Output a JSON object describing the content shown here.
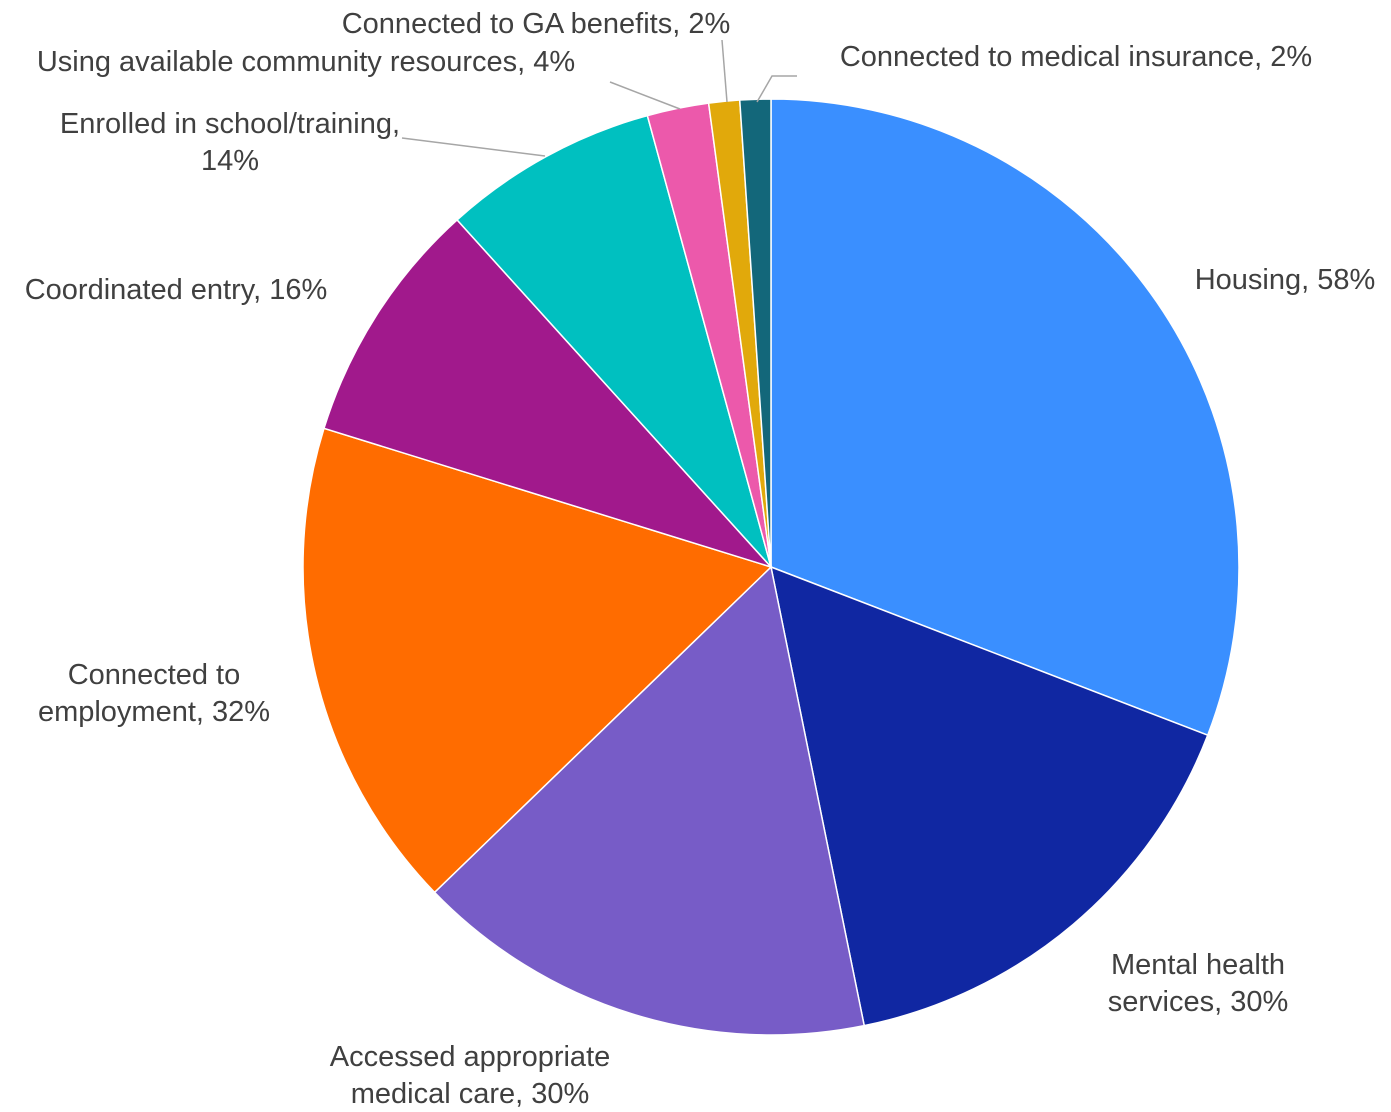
{
  "chart_data": {
    "type": "pie",
    "title": "",
    "slices": [
      {
        "label": "Housing, 58%",
        "value": 58,
        "color": "#3a8fff"
      },
      {
        "label": "Mental health services, 30%",
        "value": 30,
        "color": "#1027a2"
      },
      {
        "label": "Accessed appropriate medical care, 30%",
        "value": 30,
        "color": "#775cc7"
      },
      {
        "label": "Connected to employment, 32%",
        "value": 32,
        "color": "#ff6c00"
      },
      {
        "label": "Coordinated entry, 16%",
        "value": 16,
        "color": "#a1198c"
      },
      {
        "label": "Enrolled in school/training, 14%",
        "value": 14,
        "color": "#00c0c0"
      },
      {
        "label": "Using available community resources, 4%",
        "value": 4,
        "color": "#ec59ab"
      },
      {
        "label": "Connected to GA benefits, 2%",
        "value": 2,
        "color": "#e1a90b"
      },
      {
        "label": "Connected to medical insurance, 2%",
        "value": 2,
        "color": "#13677a"
      }
    ],
    "start_angle": "12 o'clock",
    "direction": "clockwise",
    "legend": "none"
  }
}
